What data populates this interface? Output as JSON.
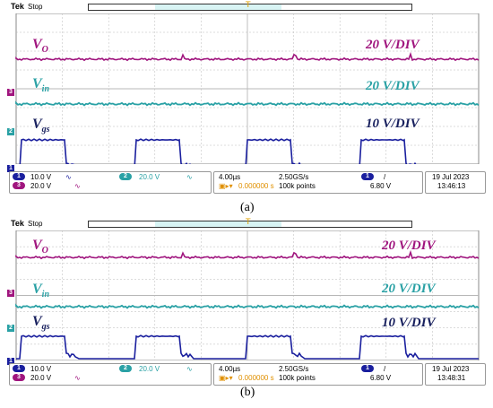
{
  "colors": {
    "vo": "#a0157e",
    "vin": "#2aa1a5",
    "vgs": "#1a1f9e",
    "grid": "#b8b8b8"
  },
  "panels": [
    {
      "brand": "Tek",
      "state": "Stop",
      "labels": {
        "vo": "V",
        "vo_sub": "O",
        "vin": "V",
        "vin_sub": "in",
        "vgs": "V",
        "vgs_sub": "gs",
        "vo_scale": "20 V/DIV",
        "vin_scale": "20 V/DIV",
        "vgs_scale": "10 V/DIV"
      },
      "status": {
        "ch1_num": "1",
        "ch1_scale": "10.0 V",
        "ch3_num": "3",
        "ch3_scale": "20.0 V",
        "ch2_num": "2",
        "ch2_scale": "20.0 V",
        "timebase": "4.00µs",
        "sample_rate": "2.50GS/s",
        "points": "100k points",
        "trig_offset": "0.000000 s",
        "trig_src": "1",
        "trig_slope": "/",
        "trig_level": "6.80 V",
        "date": "19 Jul 2023",
        "time": "13:46:13"
      },
      "caption": "(a)"
    },
    {
      "brand": "Tek",
      "state": "Stop",
      "labels": {
        "vo": "V",
        "vo_sub": "O",
        "vin": "V",
        "vin_sub": "in",
        "vgs": "V",
        "vgs_sub": "gs",
        "vo_scale": "20 V/DIV",
        "vin_scale": "20 V/DIV",
        "vgs_scale": "10 V/DIV"
      },
      "status": {
        "ch1_num": "1",
        "ch1_scale": "10.0 V",
        "ch3_num": "3",
        "ch3_scale": "20.0 V",
        "ch2_num": "2",
        "ch2_scale": "20.0 V",
        "timebase": "4.00µs",
        "sample_rate": "2.50GS/s",
        "points": "100k points",
        "trig_offset": "0.000000 s",
        "trig_src": "1",
        "trig_slope": "/",
        "trig_level": "6.80 V",
        "date": "19 Jul 2023",
        "time": "13:48:31"
      },
      "caption": "(b)"
    }
  ]
}
